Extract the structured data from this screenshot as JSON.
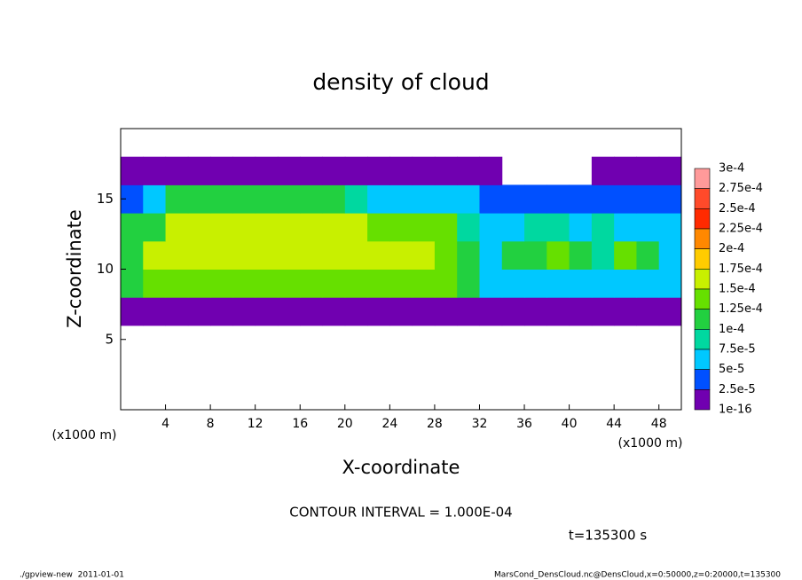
{
  "chart_data": {
    "type": "heatmap",
    "title": "density of cloud",
    "xlabel": "X-coordinate",
    "ylabel": "Z-coordinate",
    "x_unit": "(x1000 m)",
    "xlim": [
      0,
      50
    ],
    "ylim": [
      0,
      20
    ],
    "xticks": [
      4,
      8,
      12,
      16,
      20,
      24,
      28,
      32,
      36,
      40,
      44,
      48
    ],
    "yticks": [
      5,
      10,
      15
    ],
    "x": [
      1,
      3,
      5,
      7,
      9,
      11,
      13,
      15,
      17,
      19,
      21,
      23,
      25,
      27,
      29,
      31,
      33,
      35,
      37,
      39,
      41,
      43,
      45,
      47,
      49
    ],
    "y": [
      1,
      3,
      5,
      7,
      9,
      11,
      13,
      15,
      17,
      19
    ],
    "values": [
      [
        0,
        0,
        0,
        0,
        0,
        0,
        0,
        0,
        0,
        0,
        0,
        0,
        0,
        0,
        0,
        0,
        0,
        0,
        0,
        0,
        0,
        0,
        0,
        0,
        0
      ],
      [
        0,
        0,
        0,
        0,
        0,
        0,
        0,
        0,
        0,
        0,
        0,
        0,
        0,
        0,
        0,
        0,
        0,
        0,
        0,
        0,
        0,
        0,
        0,
        0,
        0
      ],
      [
        0,
        0,
        0,
        0,
        0,
        0,
        0,
        0,
        0,
        0,
        0,
        0,
        0,
        0,
        0,
        0,
        0,
        0,
        0,
        0,
        0,
        0,
        0,
        0,
        0
      ],
      [
        2e-05,
        2e-05,
        2e-05,
        2e-05,
        2e-05,
        2e-05,
        2e-05,
        2e-05,
        2e-05,
        2e-05,
        2e-05,
        2e-05,
        2e-05,
        2e-05,
        2e-05,
        2e-05,
        1e-05,
        1e-05,
        1e-05,
        1e-05,
        1e-05,
        1e-05,
        1e-05,
        1e-05,
        1e-05
      ],
      [
        0.0001,
        0.00013,
        0.00013,
        0.00013,
        0.00013,
        0.00013,
        0.00013,
        0.00013,
        0.00013,
        0.00013,
        0.00013,
        0.00013,
        0.00013,
        0.00013,
        0.00013,
        0.00011,
        6e-05,
        6e-05,
        6e-05,
        6e-05,
        6e-05,
        6e-05,
        6e-05,
        6e-05,
        6e-05
      ],
      [
        0.00012,
        0.00015,
        0.00015,
        0.00015,
        0.00015,
        0.00015,
        0.00015,
        0.00015,
        0.00015,
        0.00015,
        0.00015,
        0.00015,
        0.00015,
        0.00015,
        0.00013,
        0.00011,
        7e-05,
        0.00012,
        0.00012,
        0.00013,
        0.00012,
        8e-05,
        0.00013,
        0.0001,
        7e-05
      ],
      [
        0.0001,
        0.00012,
        0.00015,
        0.00015,
        0.00015,
        0.00015,
        0.00015,
        0.00015,
        0.00015,
        0.00015,
        0.00015,
        0.00014,
        0.00013,
        0.00013,
        0.00013,
        8e-05,
        5e-05,
        6e-05,
        9e-05,
        8e-05,
        6e-05,
        8e-05,
        6e-05,
        5e-05,
        6e-05
      ],
      [
        3e-05,
        5e-05,
        0.0001,
        0.00012,
        0.00012,
        0.00012,
        0.00012,
        0.00012,
        0.00012,
        0.0001,
        8e-05,
        6e-05,
        6e-05,
        6e-05,
        6e-05,
        6e-05,
        3e-05,
        3e-05,
        3e-05,
        3e-05,
        3e-05,
        3e-05,
        3e-05,
        3e-05,
        3e-05
      ],
      [
        1e-05,
        1e-05,
        2e-05,
        2e-05,
        2e-05,
        2e-05,
        2e-05,
        2e-05,
        2e-05,
        2e-05,
        2e-05,
        2e-05,
        2e-05,
        2e-05,
        2e-05,
        2e-05,
        2e-05,
        0,
        0,
        0,
        0,
        1e-05,
        1e-05,
        1e-05,
        1e-05
      ],
      [
        0,
        0,
        0,
        0,
        0,
        0,
        0,
        0,
        0,
        0,
        0,
        0,
        0,
        0,
        0,
        0,
        0,
        0,
        0,
        0,
        0,
        0,
        0,
        0,
        0
      ]
    ],
    "colorbar": {
      "ticks": [
        {
          "value": 0.0003,
          "label": "3e-4"
        },
        {
          "value": 0.000275,
          "label": "2.75e-4"
        },
        {
          "value": 0.00025,
          "label": "2.5e-4"
        },
        {
          "value": 0.000225,
          "label": "2.25e-4"
        },
        {
          "value": 0.0002,
          "label": "2e-4"
        },
        {
          "value": 0.000175,
          "label": "1.75e-4"
        },
        {
          "value": 0.00015,
          "label": "1.5e-4"
        },
        {
          "value": 0.000125,
          "label": "1.25e-4"
        },
        {
          "value": 0.0001,
          "label": "1e-4"
        },
        {
          "value": 7.5e-05,
          "label": "7.5e-5"
        },
        {
          "value": 5e-05,
          "label": "5e-5"
        },
        {
          "value": 2.5e-05,
          "label": "2.5e-5"
        },
        1e-16
      ],
      "colors": [
        "#ff9a9a",
        "#ff4a2a",
        "#ff2a00",
        "#ff8800",
        "#ffcc00",
        "#c8f000",
        "#66e000",
        "#22d040",
        "#00d8a0",
        "#00c8ff",
        "#0050ff",
        "#7000b0"
      ]
    },
    "contour_note": "CONTOUR INTERVAL = 1.000E-04",
    "time_note": "t=135300 s",
    "footer_left": "./gpview-new  2011-01-01",
    "footer_right": "MarsCond_DensCloud.nc@DensCloud,x=0:50000,z=0:20000,t=135300"
  }
}
